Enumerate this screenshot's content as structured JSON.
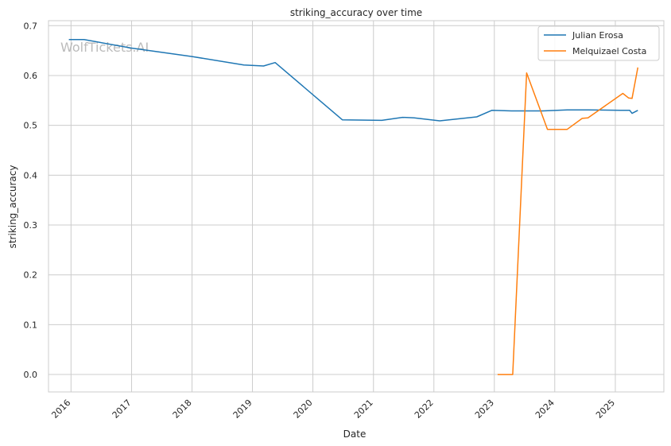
{
  "chart_data": {
    "type": "line",
    "title": "striking_accuracy over time",
    "xlabel": "Date",
    "ylabel": "striking_accuracy",
    "watermark": "WolfTickets.AI",
    "x_ticks": [
      "2016",
      "2017",
      "2018",
      "2019",
      "2020",
      "2021",
      "2022",
      "2023",
      "2024",
      "2025"
    ],
    "y_ticks": [
      "0.0",
      "0.1",
      "0.2",
      "0.3",
      "0.4",
      "0.5",
      "0.6",
      "0.7"
    ],
    "xlim": [
      "2015-08-18",
      "2025-10-21"
    ],
    "ylim": [
      -0.035,
      0.71
    ],
    "grid": true,
    "legend_position": "top-right",
    "series": [
      {
        "name": "Julian Erosa",
        "color": "#1f77b4",
        "points": [
          [
            "2015-12-19",
            0.672
          ],
          [
            "2016-03-20",
            0.672
          ],
          [
            "2017-01-01",
            0.655
          ],
          [
            "2018-01-01",
            0.638
          ],
          [
            "2018-11-10",
            0.621
          ],
          [
            "2019-03-09",
            0.619
          ],
          [
            "2019-05-18",
            0.626
          ],
          [
            "2020-06-27",
            0.511
          ],
          [
            "2021-02-20",
            0.51
          ],
          [
            "2021-06-26",
            0.516
          ],
          [
            "2021-09-04",
            0.515
          ],
          [
            "2022-02-05",
            0.509
          ],
          [
            "2022-09-17",
            0.517
          ],
          [
            "2022-12-17",
            0.53
          ],
          [
            "2023-04-15",
            0.529
          ],
          [
            "2023-10-21",
            0.529
          ],
          [
            "2024-03-16",
            0.531
          ],
          [
            "2024-07-20",
            0.531
          ],
          [
            "2025-02-01",
            0.53
          ],
          [
            "2025-03-29",
            0.53
          ],
          [
            "2025-04-12",
            0.524
          ],
          [
            "2025-05-17",
            0.53
          ]
        ]
      },
      {
        "name": "Melquizael Costa",
        "color": "#ff7f0e",
        "points": [
          [
            "2023-01-21",
            0.0
          ],
          [
            "2023-04-22",
            0.0
          ],
          [
            "2023-07-15",
            0.605
          ],
          [
            "2023-11-18",
            0.492
          ],
          [
            "2024-03-16",
            0.492
          ],
          [
            "2024-06-15",
            0.514
          ],
          [
            "2024-07-20",
            0.515
          ],
          [
            "2025-02-15",
            0.564
          ],
          [
            "2025-03-22",
            0.555
          ],
          [
            "2025-04-12",
            0.554
          ],
          [
            "2025-05-17",
            0.616
          ]
        ]
      }
    ]
  }
}
